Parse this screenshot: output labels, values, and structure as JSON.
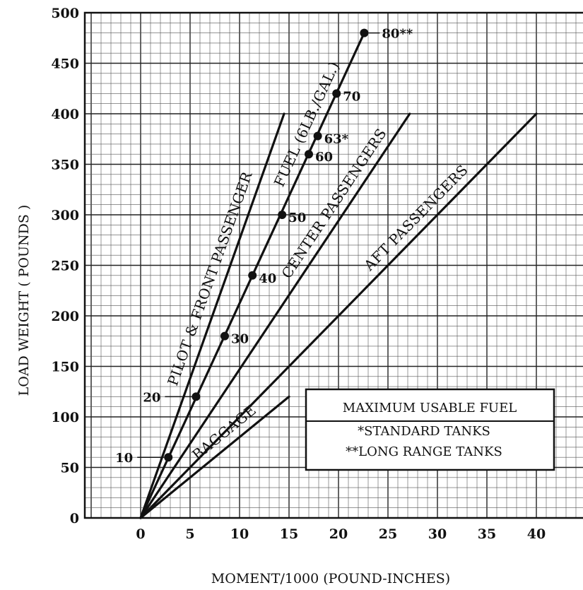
{
  "chart_data": {
    "type": "line",
    "xlabel": "MOMENT/1000 (POUND-INCHES)",
    "ylabel": "LOAD WEIGHT ( POUNDS )",
    "xlim": [
      -5,
      45
    ],
    "ylim": [
      0,
      500
    ],
    "x_ticks": [
      "0",
      "5",
      "10",
      "15",
      "20",
      "25",
      "30",
      "35",
      "40"
    ],
    "y_ticks": [
      "0",
      "50",
      "100",
      "150",
      "200",
      "250",
      "300",
      "350",
      "400",
      "450",
      "500"
    ],
    "grid": true,
    "series": [
      {
        "name": "PILOT & FRONT PASSENGER",
        "x": [
          0,
          14.5
        ],
        "y": [
          0,
          400
        ]
      },
      {
        "name": "FUEL (6LB./GAL.)",
        "x": [
          0,
          22.6
        ],
        "y": [
          0,
          480
        ]
      },
      {
        "name": "CENTER PASSENGERS",
        "x": [
          0,
          27.2
        ],
        "y": [
          0,
          400
        ]
      },
      {
        "name": "AFT PASSENGERS",
        "x": [
          0,
          40.0
        ],
        "y": [
          0,
          400
        ]
      },
      {
        "name": "BAGGAGE",
        "x": [
          0,
          15.0
        ],
        "y": [
          0,
          120
        ]
      }
    ],
    "fuel_points": [
      {
        "label": "10",
        "gallons": 10,
        "x": 2.8,
        "y": 60
      },
      {
        "label": "20",
        "gallons": 20,
        "x": 5.6,
        "y": 120
      },
      {
        "label": "30",
        "gallons": 30,
        "x": 8.5,
        "y": 180
      },
      {
        "label": "40",
        "gallons": 40,
        "x": 11.3,
        "y": 240
      },
      {
        "label": "50",
        "gallons": 50,
        "x": 14.3,
        "y": 300
      },
      {
        "label": "60",
        "gallons": 60,
        "x": 17.0,
        "y": 360
      },
      {
        "label": "63*",
        "gallons": 63,
        "x": 17.9,
        "y": 378
      },
      {
        "label": "70",
        "gallons": 70,
        "x": 19.8,
        "y": 420
      },
      {
        "label": "80**",
        "gallons": 80,
        "x": 22.6,
        "y": 480
      }
    ],
    "legend": {
      "title": "MAXIMUM USABLE FUEL",
      "entries": [
        "*STANDARD TANKS",
        "**LONG RANGE TANKS"
      ],
      "position": "bottom-right"
    }
  }
}
